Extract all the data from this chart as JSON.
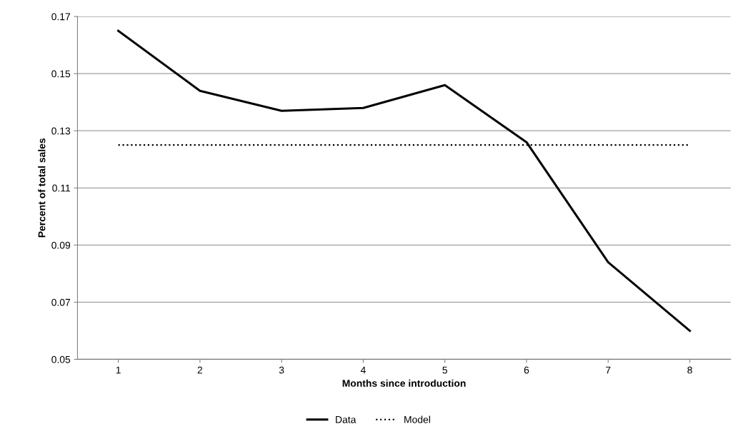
{
  "chart_data": {
    "type": "line",
    "xlabel": "Months since introduction",
    "ylabel": "Percent of total sales",
    "categories": [
      "1",
      "2",
      "3",
      "4",
      "5",
      "6",
      "7",
      "8"
    ],
    "series": [
      {
        "name": "Data",
        "color": "#000000",
        "line_style": "solid",
        "values": [
          0.165,
          0.144,
          0.137,
          0.138,
          0.146,
          0.126,
          0.084,
          0.06
        ]
      },
      {
        "name": "Model",
        "color": "#000000",
        "line_style": "dotted",
        "values": [
          0.125,
          0.125,
          0.125,
          0.125,
          0.125,
          0.125,
          0.125,
          0.125
        ]
      }
    ],
    "ylim": [
      0.05,
      0.17
    ],
    "yticks": [
      {
        "value": 0.05,
        "label": "0.05"
      },
      {
        "value": 0.07,
        "label": "0.07"
      },
      {
        "value": 0.09,
        "label": "0.09"
      },
      {
        "value": 0.11,
        "label": "0.11"
      },
      {
        "value": 0.13,
        "label": "0.13"
      },
      {
        "value": 0.15,
        "label": "0.15"
      },
      {
        "value": 0.17,
        "label": "0.17"
      }
    ],
    "grid": "y",
    "legend": "bottom",
    "marker": "none"
  }
}
